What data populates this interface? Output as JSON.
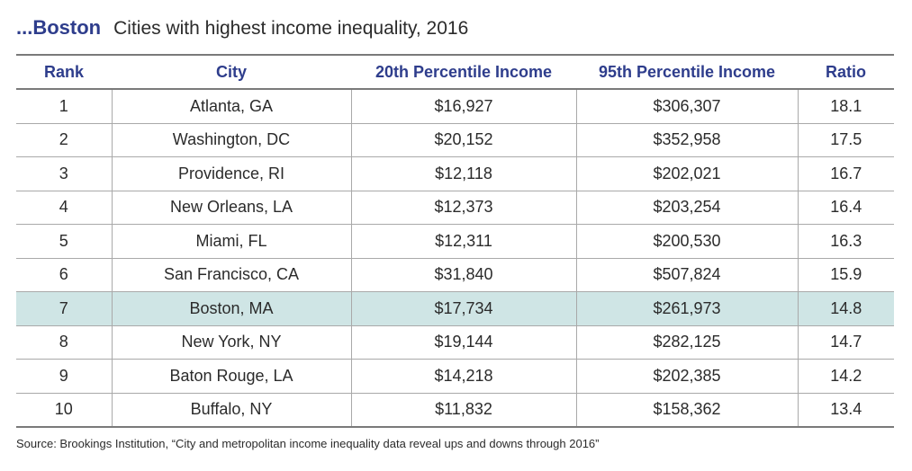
{
  "title": {
    "main": "...Boston",
    "subtitle": "Cities with highest income inequality, 2016"
  },
  "table": {
    "headers": [
      "Rank",
      "City",
      "20th Percentile Income",
      "95th Percentile Income",
      "Ratio"
    ],
    "rows": [
      {
        "rank": "1",
        "city": "Atlanta, GA",
        "p20": "$16,927",
        "p95": "$306,307",
        "ratio": "18.1"
      },
      {
        "rank": "2",
        "city": "Washington, DC",
        "p20": "$20,152",
        "p95": "$352,958",
        "ratio": "17.5"
      },
      {
        "rank": "3",
        "city": "Providence, RI",
        "p20": "$12,118",
        "p95": "$202,021",
        "ratio": "16.7"
      },
      {
        "rank": "4",
        "city": "New Orleans, LA",
        "p20": "$12,373",
        "p95": "$203,254",
        "ratio": "16.4"
      },
      {
        "rank": "5",
        "city": "Miami, FL",
        "p20": "$12,311",
        "p95": "$200,530",
        "ratio": "16.3"
      },
      {
        "rank": "6",
        "city": "San Francisco, CA",
        "p20": "$31,840",
        "p95": "$507,824",
        "ratio": "15.9"
      },
      {
        "rank": "7",
        "city": "Boston, MA",
        "p20": "$17,734",
        "p95": "$261,973",
        "ratio": "14.8",
        "highlighted": true
      },
      {
        "rank": "8",
        "city": "New York, NY",
        "p20": "$19,144",
        "p95": "$282,125",
        "ratio": "14.7"
      },
      {
        "rank": "9",
        "city": "Baton Rouge, LA",
        "p20": "$14,218",
        "p95": "$202,385",
        "ratio": "14.2"
      },
      {
        "rank": "10",
        "city": "Buffalo, NY",
        "p20": "$11,832",
        "p95": "$158,362",
        "ratio": "13.4"
      }
    ]
  },
  "source": "Source: Brookings Institution, “City and metropolitan income inequality data reveal ups and downs through 2016”",
  "colors": {
    "title_accent": "#2e3d8c",
    "highlight_row": "#cfe5e5",
    "rules": "#7a7a7a"
  }
}
